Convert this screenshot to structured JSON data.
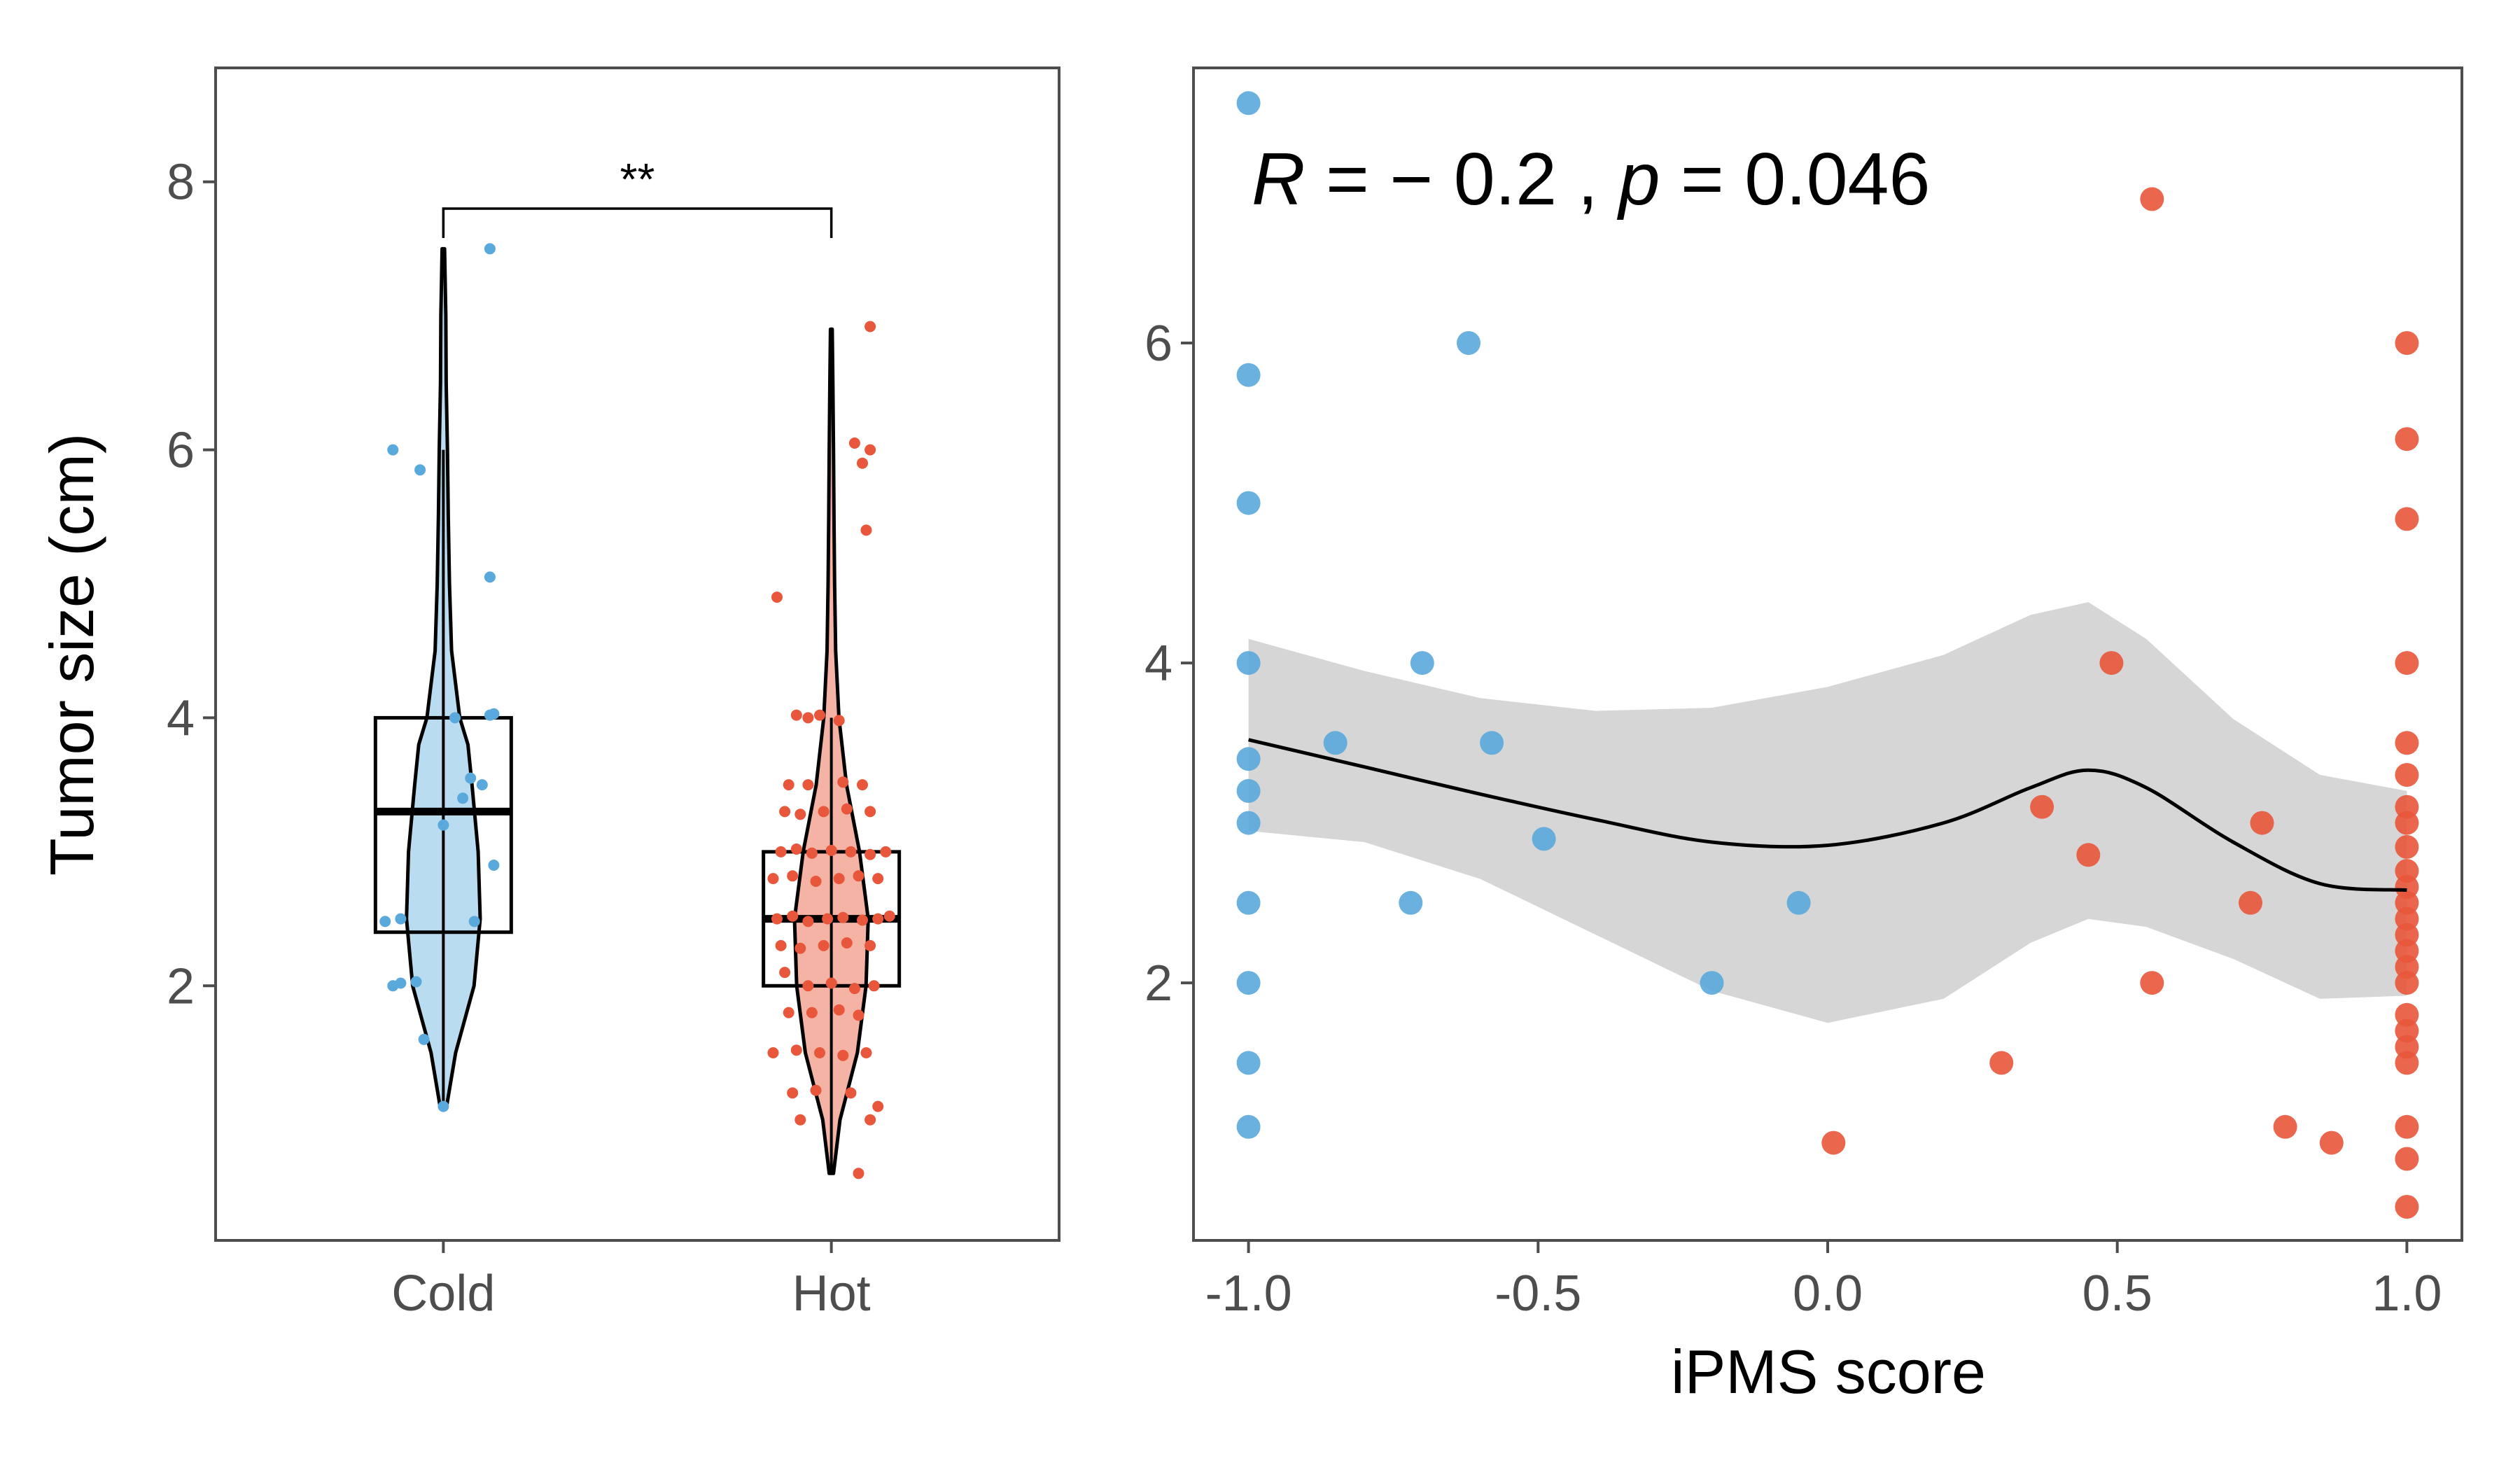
{
  "colors": {
    "cold": "#5aa9dc",
    "hot": "#e8563b",
    "cold_fill": "#b9dcf0",
    "hot_fill": "#f5b3a5",
    "ribbon": "#d4d4d4",
    "smooth_line": "#000000"
  },
  "chart_data": [
    {
      "type": "violin-box",
      "title": "",
      "xlabel": "",
      "ylabel": "Tumor size (cm)",
      "categories": [
        "Cold",
        "Hot"
      ],
      "ylim": [
        0.1,
        8.85
      ],
      "yticks": [
        2,
        4,
        6,
        8
      ],
      "yticklabels": [
        "2",
        "4",
        "6",
        "8"
      ],
      "significance": {
        "label": "**",
        "bracket_y": 7.8,
        "groups": [
          "Cold",
          "Hot"
        ]
      },
      "series": [
        {
          "name": "Cold",
          "color_key": "cold",
          "box": {
            "min": 1.1,
            "q1": 2.4,
            "median": 3.3,
            "q3": 4.0,
            "max": 6.0
          },
          "violin": [
            [
              1.1,
              0.008
            ],
            [
              1.5,
              0.03
            ],
            [
              2.0,
              0.075
            ],
            [
              2.5,
              0.09
            ],
            [
              3.0,
              0.085
            ],
            [
              3.5,
              0.07
            ],
            [
              3.8,
              0.06
            ],
            [
              4.0,
              0.04
            ],
            [
              4.5,
              0.02
            ],
            [
              5.0,
              0.015
            ],
            [
              5.5,
              0.012
            ],
            [
              6.0,
              0.01
            ],
            [
              6.5,
              0.007
            ],
            [
              7.0,
              0.006
            ],
            [
              7.5,
              0.003
            ]
          ],
          "points": [
            [
              -0.13,
              2.0
            ],
            [
              -0.11,
              2.02
            ],
            [
              -0.07,
              2.03
            ],
            [
              -0.15,
              2.48
            ],
            [
              -0.11,
              2.5
            ],
            [
              -0.05,
              1.6
            ],
            [
              0.0,
              3.2
            ],
            [
              0.05,
              3.4
            ],
            [
              0.07,
              3.55
            ],
            [
              0.1,
              3.5
            ],
            [
              0.13,
              2.9
            ],
            [
              0.08,
              2.48
            ],
            [
              0.03,
              4.0
            ],
            [
              0.12,
              4.02
            ],
            [
              0.13,
              4.03
            ],
            [
              -0.13,
              6.0
            ],
            [
              -0.06,
              5.85
            ],
            [
              0.12,
              5.05
            ],
            [
              0.12,
              7.5
            ],
            [
              0.0,
              1.1
            ]
          ]
        },
        {
          "name": "Hot",
          "color_key": "hot",
          "box": {
            "min": 0.6,
            "q1": 2.0,
            "median": 2.5,
            "q3": 3.0,
            "max": 4.0
          },
          "violin": [
            [
              0.6,
              0.01
            ],
            [
              1.0,
              0.04
            ],
            [
              1.5,
              0.12
            ],
            [
              2.0,
              0.16
            ],
            [
              2.5,
              0.17
            ],
            [
              3.0,
              0.13
            ],
            [
              3.5,
              0.07
            ],
            [
              4.0,
              0.035
            ],
            [
              4.5,
              0.02
            ],
            [
              5.0,
              0.015
            ],
            [
              5.5,
              0.012
            ],
            [
              6.0,
              0.01
            ],
            [
              6.5,
              0.007
            ],
            [
              6.9,
              0.004
            ]
          ],
          "points": [
            [
              -0.14,
              4.9
            ],
            [
              -0.09,
              4.02
            ],
            [
              -0.06,
              4.0
            ],
            [
              -0.03,
              4.02
            ],
            [
              0.02,
              3.98
            ],
            [
              -0.11,
              3.5
            ],
            [
              -0.06,
              3.5
            ],
            [
              0.03,
              3.52
            ],
            [
              0.08,
              3.5
            ],
            [
              -0.12,
              3.3
            ],
            [
              -0.08,
              3.28
            ],
            [
              -0.02,
              3.3
            ],
            [
              0.04,
              3.32
            ],
            [
              0.1,
              3.3
            ],
            [
              -0.13,
              3.0
            ],
            [
              -0.09,
              3.02
            ],
            [
              -0.05,
              2.99
            ],
            [
              0.0,
              3.01
            ],
            [
              0.05,
              3.0
            ],
            [
              0.1,
              2.98
            ],
            [
              0.14,
              3.0
            ],
            [
              -0.15,
              2.8
            ],
            [
              -0.1,
              2.82
            ],
            [
              -0.04,
              2.78
            ],
            [
              0.02,
              2.8
            ],
            [
              0.07,
              2.82
            ],
            [
              0.12,
              2.8
            ],
            [
              -0.14,
              2.5
            ],
            [
              -0.1,
              2.52
            ],
            [
              -0.06,
              2.48
            ],
            [
              -0.01,
              2.5
            ],
            [
              0.03,
              2.51
            ],
            [
              0.08,
              2.49
            ],
            [
              0.12,
              2.5
            ],
            [
              0.15,
              2.52
            ],
            [
              -0.13,
              2.3
            ],
            [
              -0.08,
              2.28
            ],
            [
              -0.02,
              2.3
            ],
            [
              0.04,
              2.32
            ],
            [
              0.1,
              2.3
            ],
            [
              -0.12,
              2.1
            ],
            [
              -0.06,
              2.0
            ],
            [
              0.0,
              2.02
            ],
            [
              0.06,
              1.98
            ],
            [
              0.11,
              2.0
            ],
            [
              -0.11,
              1.8
            ],
            [
              -0.05,
              1.8
            ],
            [
              0.02,
              1.82
            ],
            [
              0.07,
              1.78
            ],
            [
              -0.15,
              1.5
            ],
            [
              -0.09,
              1.52
            ],
            [
              -0.03,
              1.5
            ],
            [
              0.03,
              1.48
            ],
            [
              0.09,
              1.5
            ],
            [
              -0.1,
              1.2
            ],
            [
              -0.04,
              1.22
            ],
            [
              0.05,
              1.2
            ],
            [
              -0.08,
              1.0
            ],
            [
              0.1,
              1.0
            ],
            [
              0.12,
              1.1
            ],
            [
              0.07,
              0.6
            ],
            [
              0.06,
              6.05
            ],
            [
              0.1,
              6.0
            ],
            [
              0.08,
              5.9
            ],
            [
              0.09,
              5.4
            ],
            [
              0.1,
              6.92
            ]
          ]
        }
      ]
    },
    {
      "type": "scatter",
      "title": "",
      "xlabel": "iPMS score",
      "ylabel": "",
      "xlim": [
        -1.095,
        1.095
      ],
      "ylim": [
        0.39,
        7.72
      ],
      "xticks": [
        -1.0,
        -0.5,
        0.0,
        0.5,
        1.0
      ],
      "xticklabels": [
        "-1.0",
        "-0.5",
        "0.0",
        "0.5",
        "1.0"
      ],
      "yticks": [
        2,
        4,
        6
      ],
      "yticklabels": [
        "2",
        "4",
        "6"
      ],
      "annotation": {
        "R_label": "R",
        "R_value": " = − 0.2 , ",
        "p_label": "p",
        "p_value": " = 0.046"
      },
      "series": [
        {
          "name": "Cold",
          "color_key": "cold",
          "points": [
            [
              -1.0,
              7.5
            ],
            [
              -1.0,
              5.8
            ],
            [
              -1.0,
              5.0
            ],
            [
              -1.0,
              4.0
            ],
            [
              -1.0,
              3.4
            ],
            [
              -1.0,
              3.2
            ],
            [
              -1.0,
              3.0
            ],
            [
              -1.0,
              2.5
            ],
            [
              -1.0,
              2.0
            ],
            [
              -1.0,
              1.5
            ],
            [
              -1.0,
              1.1
            ],
            [
              -0.85,
              3.5
            ],
            [
              -0.7,
              4.0
            ],
            [
              -0.72,
              2.5
            ],
            [
              -0.62,
              6.0
            ],
            [
              -0.58,
              3.5
            ],
            [
              -0.49,
              2.9
            ],
            [
              -0.2,
              2.0
            ],
            [
              -0.05,
              2.5
            ]
          ]
        },
        {
          "name": "Hot",
          "color_key": "hot",
          "points": [
            [
              0.56,
              6.9
            ],
            [
              0.49,
              4.0
            ],
            [
              0.37,
              3.1
            ],
            [
              0.45,
              2.8
            ],
            [
              0.56,
              2.0
            ],
            [
              0.3,
              1.5
            ],
            [
              0.01,
              1.0
            ],
            [
              0.73,
              2.5
            ],
            [
              0.75,
              3.0
            ],
            [
              0.79,
              1.1
            ],
            [
              0.87,
              1.0
            ],
            [
              1.0,
              6.0
            ],
            [
              1.0,
              5.4
            ],
            [
              1.0,
              4.9
            ],
            [
              1.0,
              4.0
            ],
            [
              1.0,
              3.5
            ],
            [
              1.0,
              3.3
            ],
            [
              1.0,
              3.1
            ],
            [
              1.0,
              3.0
            ],
            [
              1.0,
              2.85
            ],
            [
              1.0,
              2.7
            ],
            [
              1.0,
              2.6
            ],
            [
              1.0,
              2.5
            ],
            [
              1.0,
              2.4
            ],
            [
              1.0,
              2.3
            ],
            [
              1.0,
              2.2
            ],
            [
              1.0,
              2.1
            ],
            [
              1.0,
              2.0
            ],
            [
              1.0,
              1.8
            ],
            [
              1.0,
              1.7
            ],
            [
              1.0,
              1.6
            ],
            [
              1.0,
              1.5
            ],
            [
              1.0,
              1.1
            ],
            [
              1.0,
              0.9
            ],
            [
              1.0,
              0.6
            ]
          ]
        }
      ],
      "smooth": {
        "x": [
          -1.0,
          -0.8,
          -0.6,
          -0.4,
          -0.2,
          0.0,
          0.2,
          0.35,
          0.45,
          0.55,
          0.7,
          0.85,
          1.0
        ],
        "y": [
          3.52,
          3.35,
          3.18,
          3.02,
          2.88,
          2.86,
          3.0,
          3.22,
          3.33,
          3.22,
          2.88,
          2.62,
          2.58
        ],
        "lower": [
          2.95,
          2.88,
          2.65,
          2.3,
          1.95,
          1.75,
          1.9,
          2.25,
          2.4,
          2.35,
          2.15,
          1.9,
          1.92
        ],
        "upper": [
          4.15,
          3.95,
          3.78,
          3.7,
          3.72,
          3.85,
          4.05,
          4.3,
          4.38,
          4.15,
          3.65,
          3.3,
          3.2
        ]
      }
    }
  ]
}
